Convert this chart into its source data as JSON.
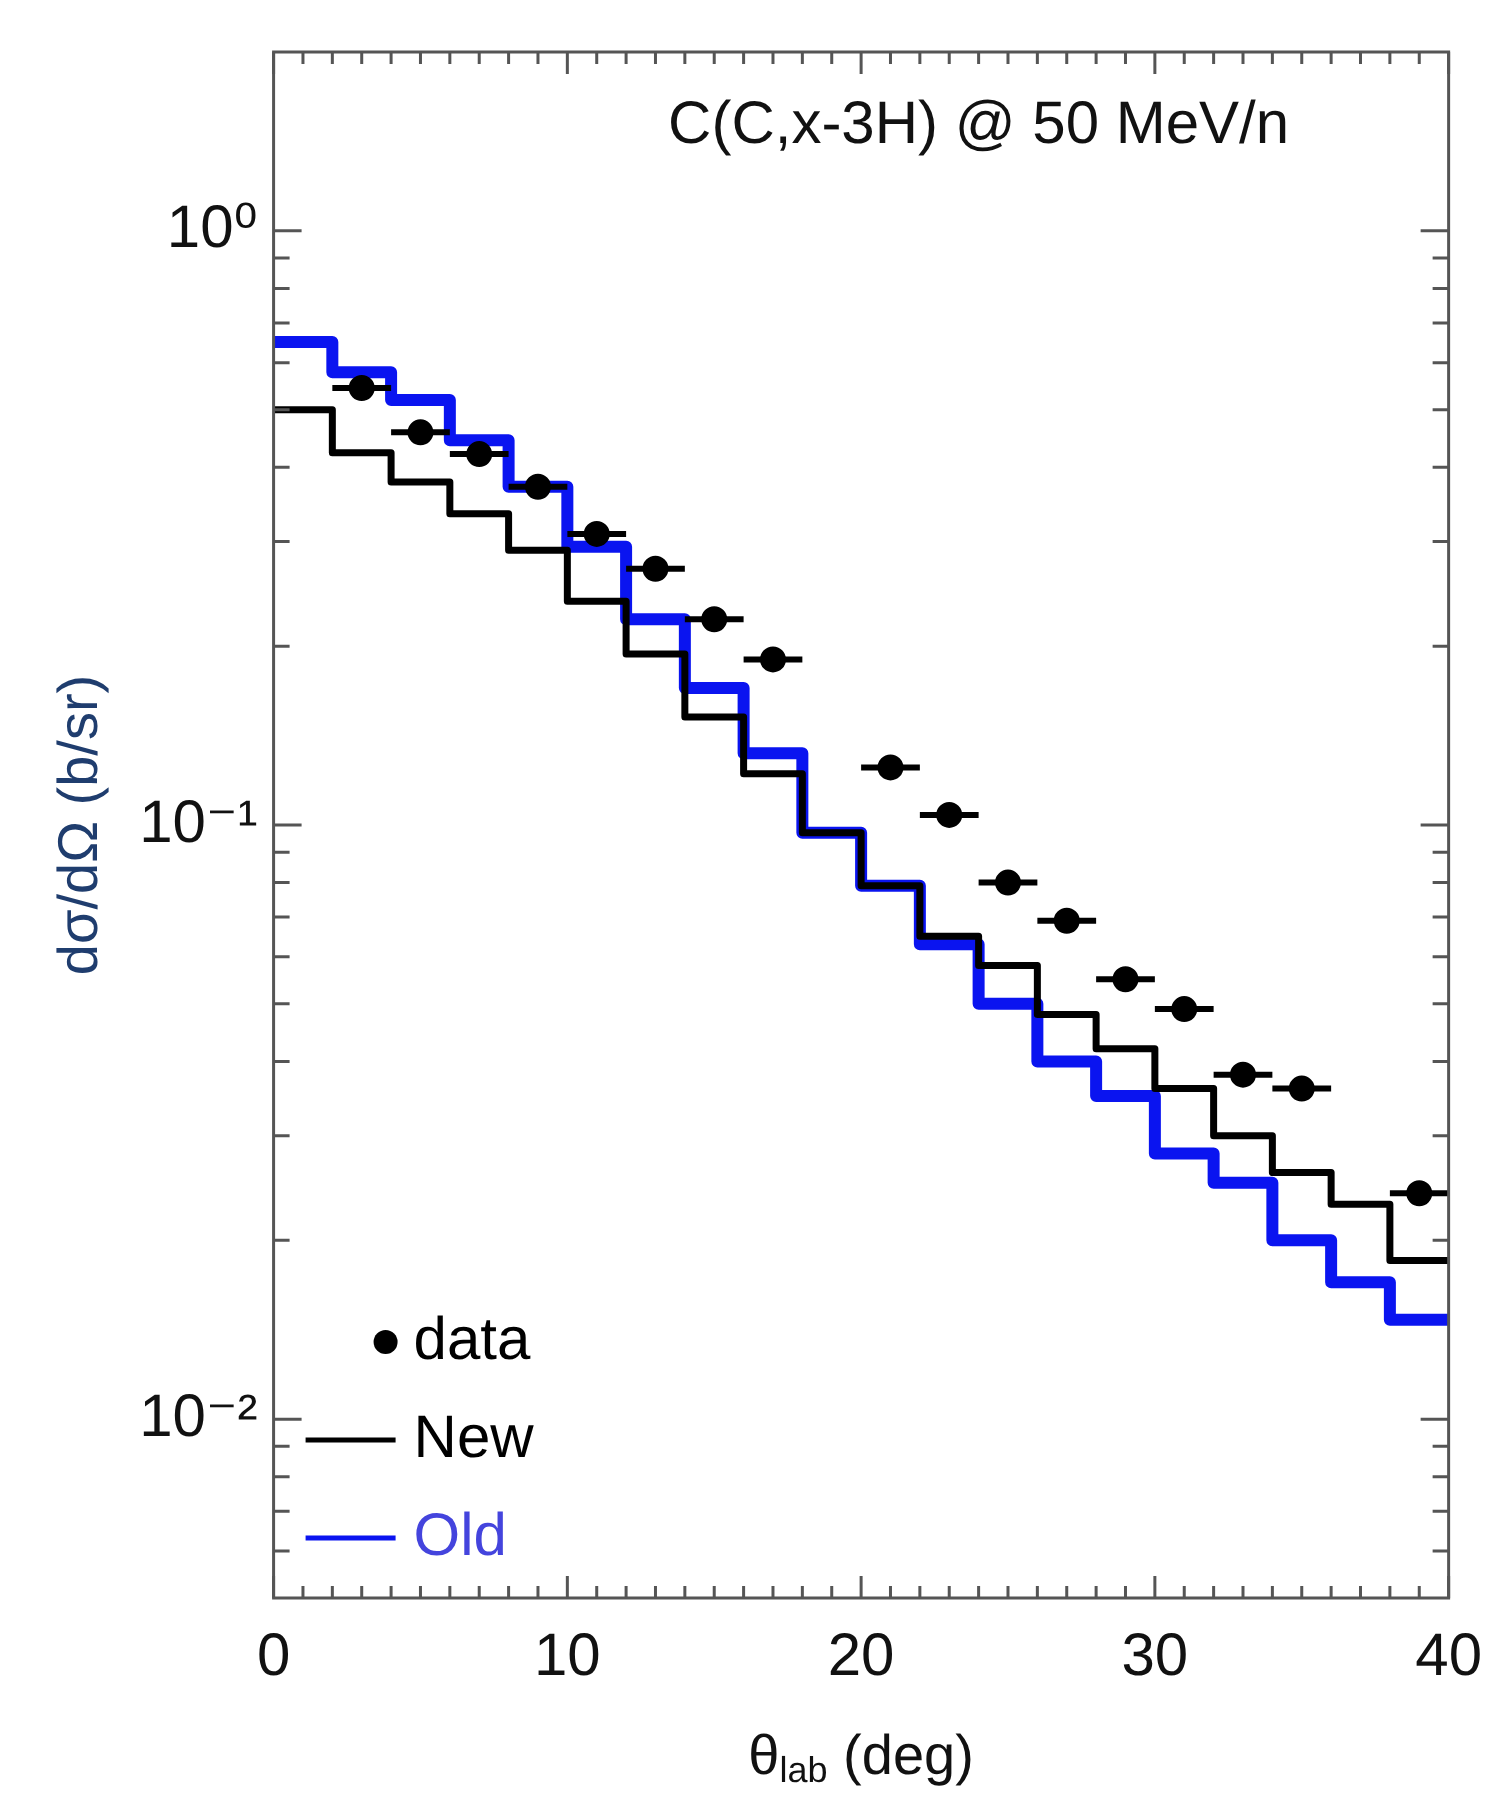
{
  "chart_data": {
    "type": "step",
    "title": "C(C,x-3H) @ 50 MeV/n",
    "xlabel": "θ$_{lab}$ (deg)",
    "ylabel": "dσ/dΩ (b/sr)",
    "log": "y",
    "grid": false,
    "legend": "bottom left",
    "line_style": "solid",
    "xlim": [
      0,
      40
    ],
    "ylim": [
      0.005,
      2
    ],
    "xticks": [
      0,
      {
        "value": 1,
        "label": null
      },
      {
        "value": 2,
        "label": null
      },
      {
        "value": 3,
        "label": null
      },
      {
        "value": 4,
        "label": null
      },
      {
        "value": 5,
        "label": null
      },
      {
        "value": 6,
        "label": null
      },
      {
        "value": 7,
        "label": null
      },
      {
        "value": 8,
        "label": null
      },
      {
        "value": 9,
        "label": null
      },
      10,
      {
        "value": 11,
        "label": null
      },
      {
        "value": 12,
        "label": null
      },
      {
        "value": 13,
        "label": null
      },
      {
        "value": 14,
        "label": null
      },
      {
        "value": 15,
        "label": null
      },
      {
        "value": 16,
        "label": null
      },
      {
        "value": 17,
        "label": null
      },
      {
        "value": 18,
        "label": null
      },
      {
        "value": 19,
        "label": null
      },
      20,
      {
        "value": 21,
        "label": null
      },
      {
        "value": 22,
        "label": null
      },
      {
        "value": 23,
        "label": null
      },
      {
        "value": 24,
        "label": null
      },
      {
        "value": 25,
        "label": null
      },
      {
        "value": 26,
        "label": null
      },
      {
        "value": 27,
        "label": null
      },
      {
        "value": 28,
        "label": null
      },
      {
        "value": 29,
        "label": null
      },
      30,
      {
        "value": 31,
        "label": null
      },
      {
        "value": 32,
        "label": null
      },
      {
        "value": 33,
        "label": null
      },
      {
        "value": 34,
        "label": null
      },
      {
        "value": 35,
        "label": null
      },
      {
        "value": 36,
        "label": null
      },
      {
        "value": 37,
        "label": null
      },
      {
        "value": 38,
        "label": null
      },
      {
        "value": 39,
        "label": null
      },
      40
    ],
    "yticks": [
      {
        "value": 0.006,
        "label": null
      },
      {
        "value": 0.007,
        "label": null
      },
      {
        "value": 0.008,
        "label": null
      },
      {
        "value": 0.009,
        "label": null
      },
      {
        "value": 0.01,
        "label": "10⁻²"
      },
      {
        "value": 0.02,
        "label": null
      },
      {
        "value": 0.03,
        "label": null
      },
      {
        "value": 0.04,
        "label": null
      },
      {
        "value": 0.05,
        "label": null
      },
      {
        "value": 0.06,
        "label": null
      },
      {
        "value": 0.07,
        "label": null
      },
      {
        "value": 0.08,
        "label": null
      },
      {
        "value": 0.09,
        "label": null
      },
      {
        "value": 0.1,
        "label": "10⁻¹"
      },
      {
        "value": 0.2,
        "label": null
      },
      {
        "value": 0.3,
        "label": null
      },
      {
        "value": 0.4,
        "label": null
      },
      {
        "value": 0.5,
        "label": null
      },
      {
        "value": 0.6,
        "label": null
      },
      {
        "value": 0.7,
        "label": null
      },
      {
        "value": 0.8,
        "label": null
      },
      {
        "value": 0.9,
        "label": null
      },
      {
        "value": 1,
        "label": "10⁰"
      }
    ],
    "series": [
      {
        "name": "data",
        "type": "scatter",
        "marker": "circle",
        "color": "#000000",
        "x": [
          3,
          5,
          7,
          9,
          11,
          13,
          15,
          17,
          21,
          23,
          25,
          27,
          29,
          31,
          33,
          35,
          39
        ],
        "values": [
          0.544,
          0.458,
          0.421,
          0.371,
          0.309,
          0.27,
          0.222,
          0.19,
          0.125,
          0.104,
          0.08,
          0.069,
          0.055,
          0.049,
          0.038,
          0.036,
          0.024
        ],
        "xerrors": [
          1,
          1,
          1,
          1,
          1,
          1,
          1,
          1,
          1,
          1,
          1,
          1,
          1,
          1,
          1,
          1,
          1
        ]
      },
      {
        "name": "New",
        "color": "#000000",
        "x": [
          0,
          2,
          4,
          6,
          8,
          10,
          12,
          14,
          16,
          18,
          20,
          22,
          24,
          26,
          28,
          30,
          32,
          34,
          36,
          38,
          40
        ],
        "values": [
          0.5,
          0.423,
          0.378,
          0.334,
          0.29,
          0.238,
          0.194,
          0.152,
          0.122,
          0.097,
          0.079,
          0.065,
          0.058,
          0.048,
          0.042,
          0.036,
          0.03,
          0.026,
          0.023,
          0.0185,
          0.0185
        ]
      },
      {
        "name": "Old",
        "color": "#0a14f0",
        "x": [
          0,
          2,
          4,
          6,
          8,
          10,
          12,
          14,
          16,
          18,
          20,
          22,
          24,
          26,
          28,
          30,
          32,
          34,
          36,
          38,
          40
        ],
        "values": [
          0.65,
          0.578,
          0.519,
          0.444,
          0.371,
          0.294,
          0.222,
          0.17,
          0.132,
          0.097,
          0.079,
          0.063,
          0.05,
          0.04,
          0.035,
          0.028,
          0.025,
          0.02,
          0.017,
          0.0147,
          0.0147
        ]
      }
    ]
  }
}
